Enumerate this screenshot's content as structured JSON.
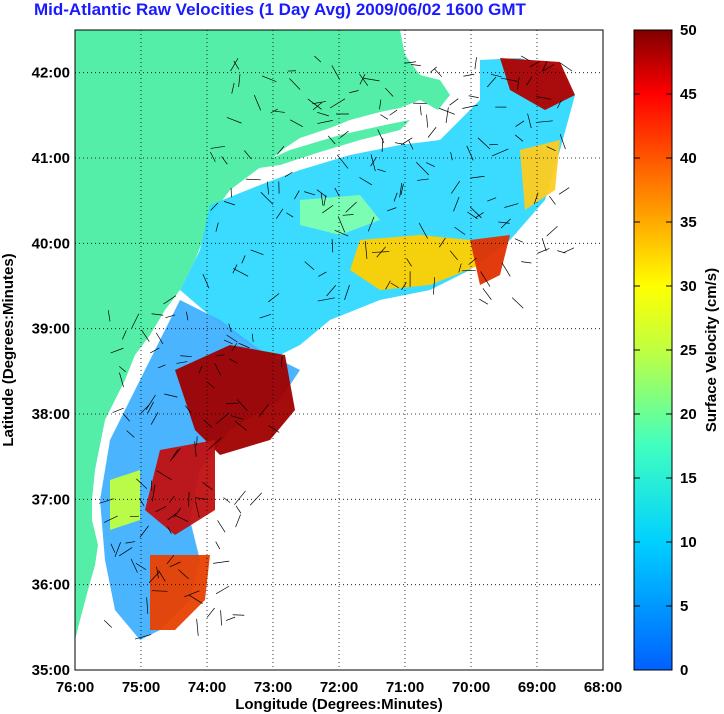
{
  "title": "Mid-Atlantic Raw Velocities (1 Day Avg) 2009/06/02 1600 GMT",
  "map": {
    "x_axis_label": "Longitude (Degrees:Minutes)",
    "y_axis_label": "Latitude (Degrees:Minutes)",
    "x_ticks": [
      "76:00",
      "75:00",
      "74:00",
      "73:00",
      "72:00",
      "71:00",
      "70:00",
      "69:00",
      "68:00"
    ],
    "y_ticks": [
      "42:00",
      "41:00",
      "40:00",
      "39:00",
      "38:00",
      "37:00",
      "36:00",
      "35:00"
    ],
    "lon_range": [
      -76,
      -68
    ],
    "lat_range": [
      35,
      42.5
    ],
    "land_color": "#55eea8",
    "grid": "dotted"
  },
  "colorbar": {
    "label": "Surface Velocity (cm/s)",
    "ticks": [
      "0",
      "5",
      "10",
      "15",
      "20",
      "25",
      "30",
      "35",
      "40",
      "45",
      "50"
    ],
    "range": [
      0,
      50
    ],
    "colormap": "jet"
  }
}
